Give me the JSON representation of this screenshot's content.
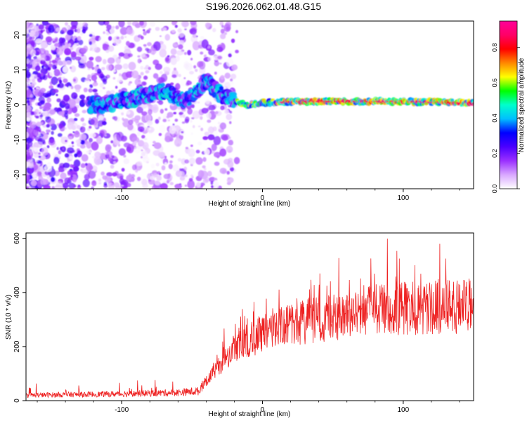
{
  "figure_title": "S196.2026.062.01.48.G15",
  "chart_data": [
    {
      "type": "heatmap",
      "title": "S196.2026.062.01.48.G15",
      "xlabel": "Height of straight line (km)",
      "ylabel": "Frequency (Hz)",
      "xlim": [
        -168,
        150
      ],
      "ylim": [
        -24,
        24
      ],
      "xticks": [
        -100,
        0,
        100
      ],
      "yticks": [
        -20,
        -10,
        0,
        10,
        20
      ],
      "ridge": {
        "description_points_height_km": [
          -115,
          -90,
          -70,
          -55,
          -40,
          -30,
          -20,
          -10,
          0,
          20,
          60,
          100,
          150
        ],
        "frequency_hz": [
          0,
          2,
          4,
          1,
          7,
          3,
          1,
          0,
          0.5,
          1,
          1,
          1,
          0.5
        ]
      },
      "colorbar": {
        "label": "Normalized spectral amplitude",
        "range": [
          0.0,
          0.95
        ],
        "ticks": [
          0.0,
          0.2,
          0.4,
          0.6,
          0.8
        ],
        "tick_labels": [
          "0.0",
          "0.2",
          "0.4",
          "0.6",
          "0.8"
        ],
        "colors": [
          "#ffffff",
          "#d9a8ff",
          "#9b30ff",
          "#4b00ff",
          "#0000ff",
          "#00bfff",
          "#00ffcc",
          "#00ff00",
          "#ffff00",
          "#ff8800",
          "#ff0000",
          "#ff0066",
          "#ff0099"
        ]
      }
    },
    {
      "type": "line",
      "xlabel": "Height of straight line (km)",
      "ylabel": "SNR (10 * v/v)",
      "xlim": [
        -168,
        150
      ],
      "ylim": [
        0,
        620
      ],
      "xticks": [
        -100,
        0,
        100
      ],
      "yticks": [
        0,
        200,
        400,
        600
      ],
      "series": [
        {
          "name": "SNR",
          "color": "#ee2222",
          "envelope_x": [
            -168,
            -100,
            -60,
            -45,
            -40,
            -30,
            -20,
            -10,
            0,
            20,
            40,
            60,
            68,
            70,
            100,
            150
          ],
          "envelope_y": [
            20,
            25,
            30,
            35,
            90,
            170,
            250,
            290,
            320,
            360,
            390,
            400,
            410,
            430,
            440,
            450
          ]
        }
      ]
    }
  ]
}
